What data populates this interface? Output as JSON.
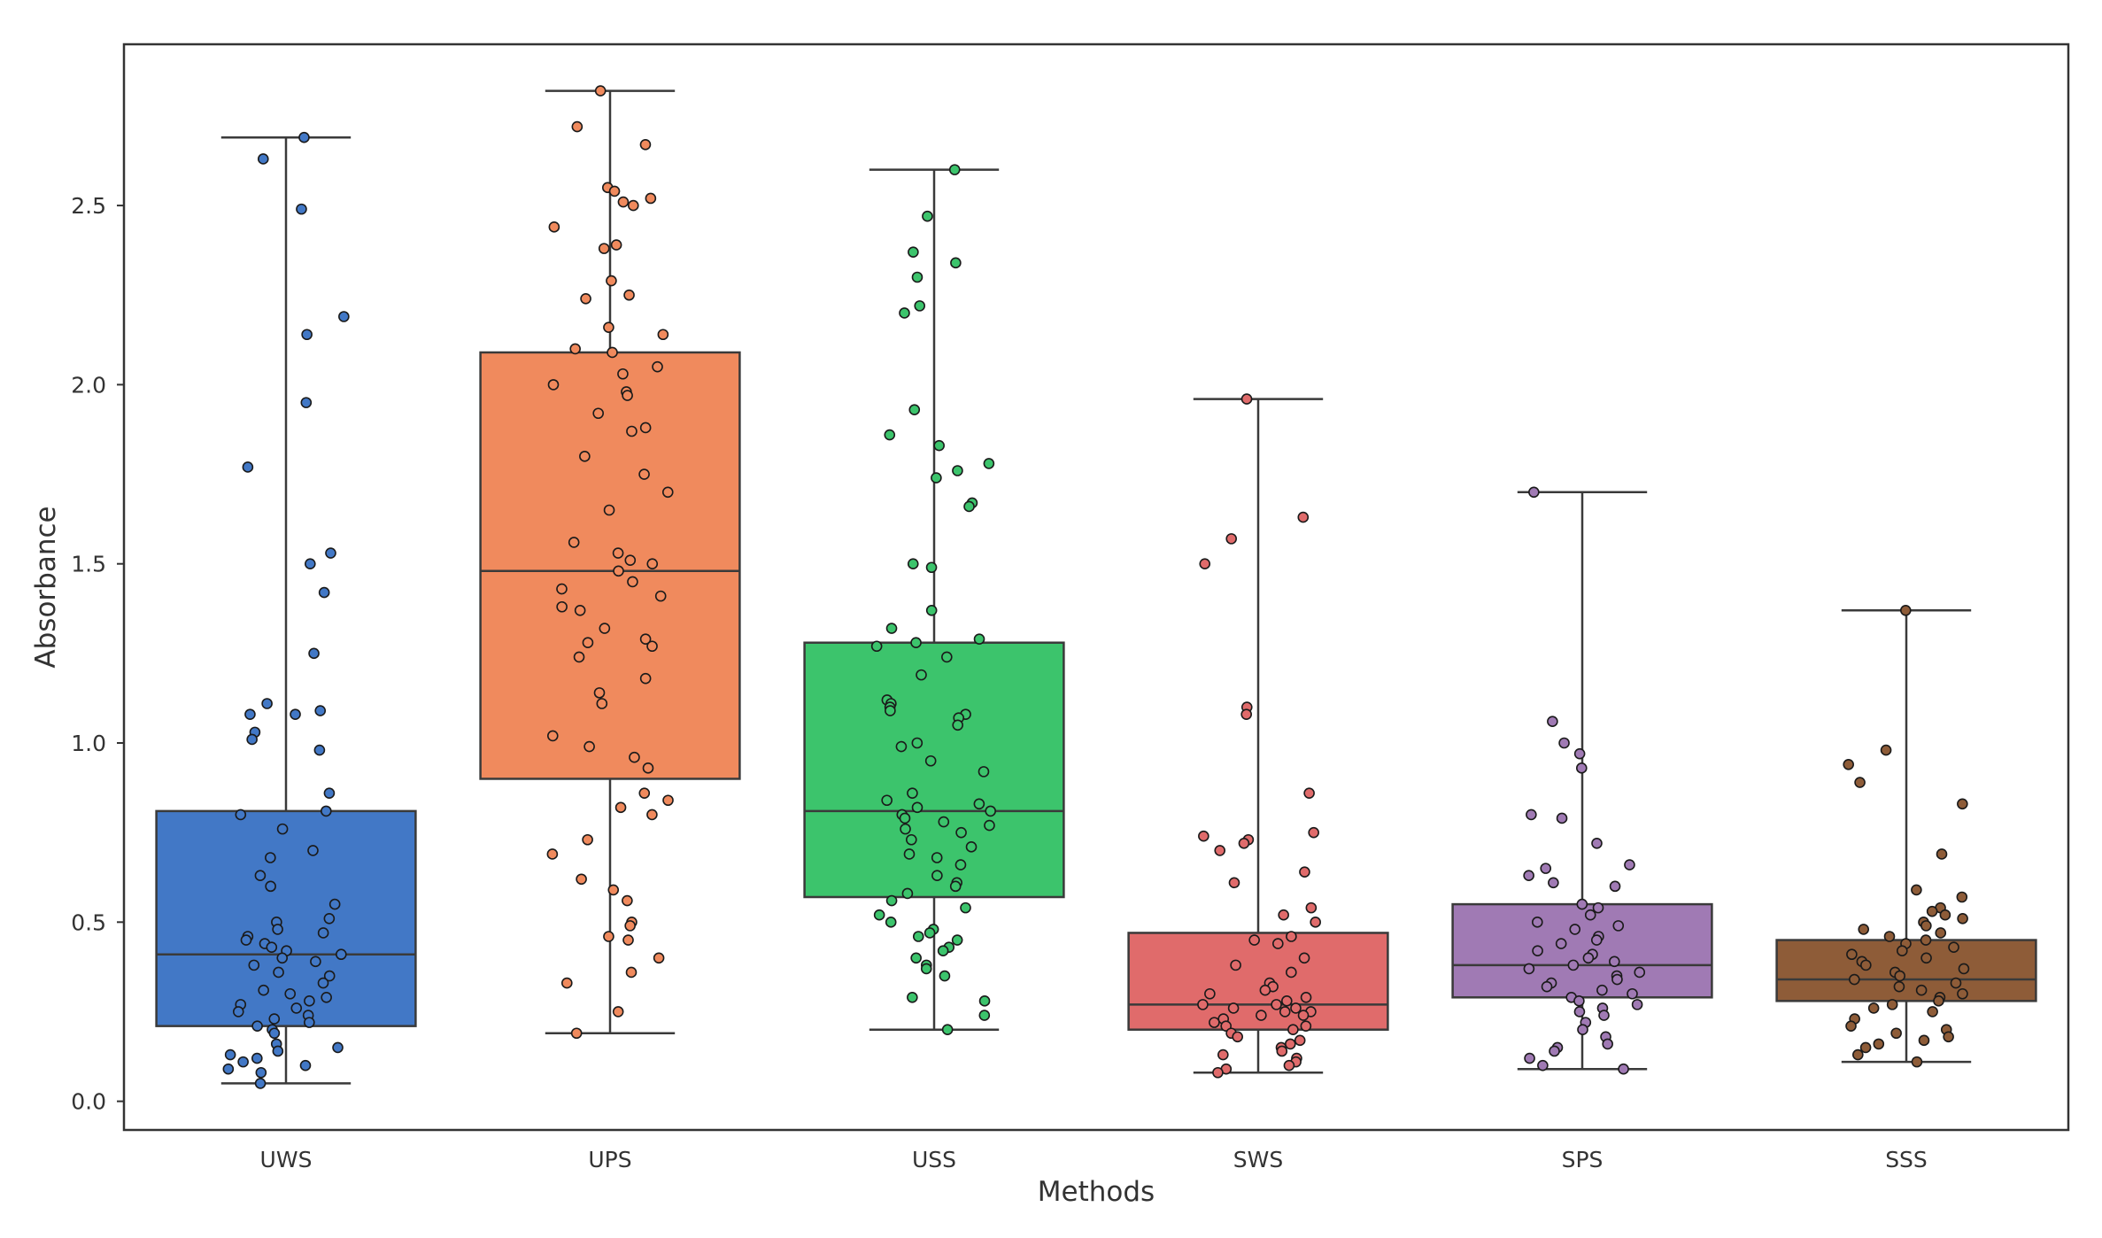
{
  "chart_data": {
    "type": "box",
    "title": "",
    "xlabel": "Methods",
    "ylabel": "Absorbance",
    "ylim": [
      -0.08,
      2.95
    ],
    "yticks": [
      0.0,
      0.5,
      1.0,
      1.5,
      2.0,
      2.5
    ],
    "ytick_labels": [
      "0.0",
      "0.5",
      "1.0",
      "1.5",
      "2.0",
      "2.5"
    ],
    "grid": false,
    "categories": [
      "UWS",
      "UPS",
      "USS",
      "SWS",
      "SPS",
      "SSS"
    ],
    "colors": [
      "#4278c6",
      "#f08a5d",
      "#3cc46c",
      "#e06b6b",
      "#a07ab4",
      "#8e5c38"
    ],
    "boxes": [
      {
        "category": "UWS",
        "min": 0.05,
        "q1": 0.21,
        "median": 0.41,
        "q3": 0.81,
        "max": 2.69
      },
      {
        "category": "UPS",
        "min": 0.19,
        "q1": 0.9,
        "median": 1.48,
        "q3": 2.09,
        "max": 2.82
      },
      {
        "category": "USS",
        "min": 0.2,
        "q1": 0.57,
        "median": 0.81,
        "q3": 1.28,
        "max": 2.6
      },
      {
        "category": "SWS",
        "min": 0.08,
        "q1": 0.2,
        "median": 0.27,
        "q3": 0.47,
        "max": 1.96
      },
      {
        "category": "SPS",
        "min": 0.09,
        "q1": 0.29,
        "median": 0.38,
        "q3": 0.55,
        "max": 1.7
      },
      {
        "category": "SSS",
        "min": 0.11,
        "q1": 0.28,
        "median": 0.34,
        "q3": 0.45,
        "max": 1.37
      }
    ],
    "points": {
      "UWS": [
        2.69,
        2.63,
        2.49,
        2.19,
        2.14,
        1.95,
        1.77,
        1.53,
        1.5,
        1.42,
        1.25,
        1.11,
        1.09,
        1.08,
        1.08,
        1.03,
        1.01,
        0.98,
        0.86,
        0.81,
        0.8,
        0.76,
        0.7,
        0.68,
        0.63,
        0.6,
        0.55,
        0.51,
        0.5,
        0.48,
        0.47,
        0.46,
        0.45,
        0.44,
        0.43,
        0.42,
        0.41,
        0.4,
        0.39,
        0.38,
        0.36,
        0.35,
        0.33,
        0.31,
        0.3,
        0.29,
        0.28,
        0.27,
        0.26,
        0.25,
        0.24,
        0.23,
        0.22,
        0.21,
        0.2,
        0.19,
        0.16,
        0.15,
        0.14,
        0.13,
        0.12,
        0.11,
        0.1,
        0.09,
        0.08,
        0.05
      ],
      "UPS": [
        2.82,
        2.72,
        2.67,
        2.55,
        2.54,
        2.52,
        2.51,
        2.5,
        2.44,
        2.39,
        2.38,
        2.29,
        2.25,
        2.24,
        2.16,
        2.14,
        2.1,
        2.09,
        2.05,
        2.03,
        2.0,
        1.98,
        1.97,
        1.92,
        1.88,
        1.87,
        1.8,
        1.75,
        1.7,
        1.65,
        1.56,
        1.53,
        1.51,
        1.5,
        1.48,
        1.45,
        1.43,
        1.41,
        1.38,
        1.37,
        1.32,
        1.29,
        1.28,
        1.27,
        1.24,
        1.18,
        1.14,
        1.11,
        1.02,
        0.99,
        0.96,
        0.93,
        0.86,
        0.84,
        0.82,
        0.8,
        0.73,
        0.69,
        0.62,
        0.59,
        0.56,
        0.5,
        0.49,
        0.46,
        0.45,
        0.4,
        0.36,
        0.33,
        0.25,
        0.19
      ],
      "USS": [
        2.6,
        2.47,
        2.37,
        2.34,
        2.3,
        2.22,
        2.2,
        1.93,
        1.86,
        1.83,
        1.78,
        1.76,
        1.74,
        1.67,
        1.66,
        1.5,
        1.49,
        1.37,
        1.32,
        1.29,
        1.28,
        1.27,
        1.24,
        1.19,
        1.12,
        1.11,
        1.1,
        1.09,
        1.08,
        1.07,
        1.05,
        1.0,
        0.99,
        0.95,
        0.92,
        0.86,
        0.84,
        0.83,
        0.82,
        0.81,
        0.8,
        0.79,
        0.78,
        0.77,
        0.76,
        0.75,
        0.73,
        0.71,
        0.69,
        0.68,
        0.66,
        0.63,
        0.61,
        0.6,
        0.58,
        0.56,
        0.54,
        0.52,
        0.5,
        0.48,
        0.47,
        0.46,
        0.45,
        0.43,
        0.42,
        0.4,
        0.38,
        0.37,
        0.35,
        0.29,
        0.28,
        0.24,
        0.2
      ],
      "SWS": [
        1.96,
        1.63,
        1.57,
        1.5,
        1.1,
        1.08,
        0.86,
        0.75,
        0.74,
        0.73,
        0.72,
        0.7,
        0.64,
        0.61,
        0.54,
        0.52,
        0.5,
        0.46,
        0.45,
        0.44,
        0.4,
        0.38,
        0.36,
        0.33,
        0.32,
        0.31,
        0.3,
        0.29,
        0.28,
        0.27,
        0.27,
        0.26,
        0.26,
        0.25,
        0.25,
        0.24,
        0.24,
        0.23,
        0.22,
        0.21,
        0.21,
        0.2,
        0.19,
        0.18,
        0.17,
        0.16,
        0.15,
        0.14,
        0.13,
        0.12,
        0.11,
        0.1,
        0.09,
        0.08
      ],
      "SPS": [
        1.7,
        1.06,
        1.0,
        0.97,
        0.93,
        0.8,
        0.79,
        0.72,
        0.66,
        0.65,
        0.63,
        0.61,
        0.6,
        0.55,
        0.54,
        0.52,
        0.5,
        0.49,
        0.48,
        0.46,
        0.45,
        0.44,
        0.42,
        0.41,
        0.4,
        0.39,
        0.38,
        0.37,
        0.36,
        0.35,
        0.34,
        0.33,
        0.32,
        0.31,
        0.3,
        0.29,
        0.28,
        0.27,
        0.26,
        0.25,
        0.24,
        0.22,
        0.2,
        0.18,
        0.16,
        0.15,
        0.14,
        0.12,
        0.1,
        0.09
      ],
      "SSS": [
        1.37,
        0.98,
        0.94,
        0.89,
        0.83,
        0.69,
        0.59,
        0.57,
        0.54,
        0.53,
        0.52,
        0.51,
        0.5,
        0.49,
        0.48,
        0.47,
        0.46,
        0.45,
        0.44,
        0.43,
        0.42,
        0.41,
        0.4,
        0.39,
        0.38,
        0.37,
        0.36,
        0.35,
        0.34,
        0.33,
        0.32,
        0.31,
        0.3,
        0.29,
        0.28,
        0.27,
        0.26,
        0.25,
        0.23,
        0.21,
        0.2,
        0.19,
        0.18,
        0.17,
        0.16,
        0.15,
        0.13,
        0.11
      ]
    }
  }
}
